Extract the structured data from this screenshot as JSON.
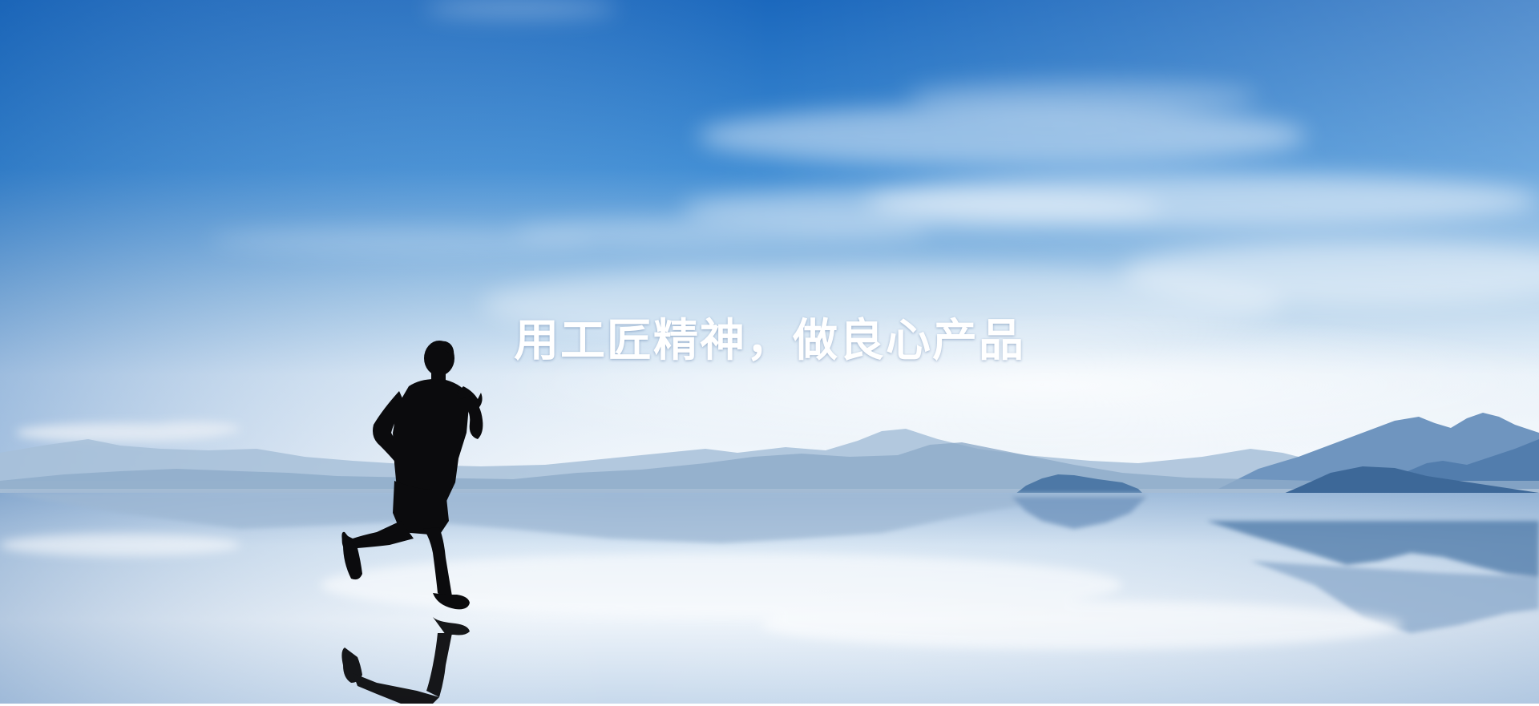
{
  "banner": {
    "slogan": "用工匠精神，做良心产品"
  },
  "colors": {
    "sky_top": "#1f6fc2",
    "sky_mid": "#4f97d8",
    "horizon": "#dceaf6",
    "water_light": "#eef4fa",
    "water_shadow": "#5f89b8",
    "mountain_far": "#9fb8d3",
    "mountain_near": "#3f6c9c",
    "silhouette": "#0b0b0d",
    "slogan_text": "#ffffff"
  }
}
